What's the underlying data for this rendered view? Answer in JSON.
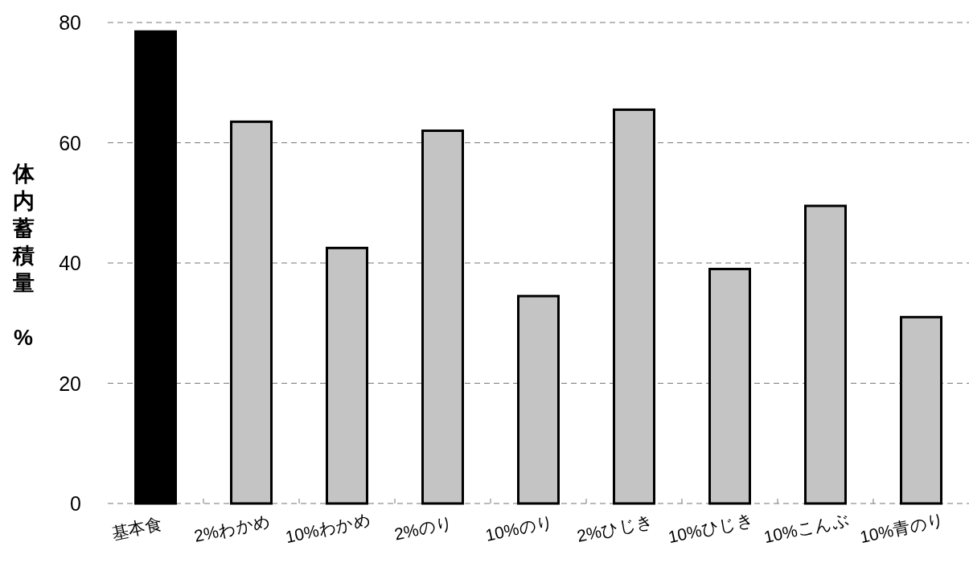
{
  "chart_data": {
    "type": "bar",
    "categories": [
      "基本食",
      "2%わかめ",
      "10%わかめ",
      "2%のり",
      "10%のり",
      "2%ひじき",
      "10%ひじき",
      "10%こんぶ",
      "10%青のり"
    ],
    "values": [
      78.5,
      63.5,
      42.5,
      62,
      34.5,
      65.5,
      39,
      49.5,
      31
    ],
    "colors": [
      "#000000",
      "#c4c4c4",
      "#c4c4c4",
      "#c4c4c4",
      "#c4c4c4",
      "#c4c4c4",
      "#c4c4c4",
      "#c4c4c4",
      "#c4c4c4"
    ],
    "ylabel": "体内蓄積量 %",
    "ylim": [
      0,
      80
    ],
    "yticks": [
      0,
      20,
      40,
      60,
      80
    ],
    "grid": "y"
  }
}
